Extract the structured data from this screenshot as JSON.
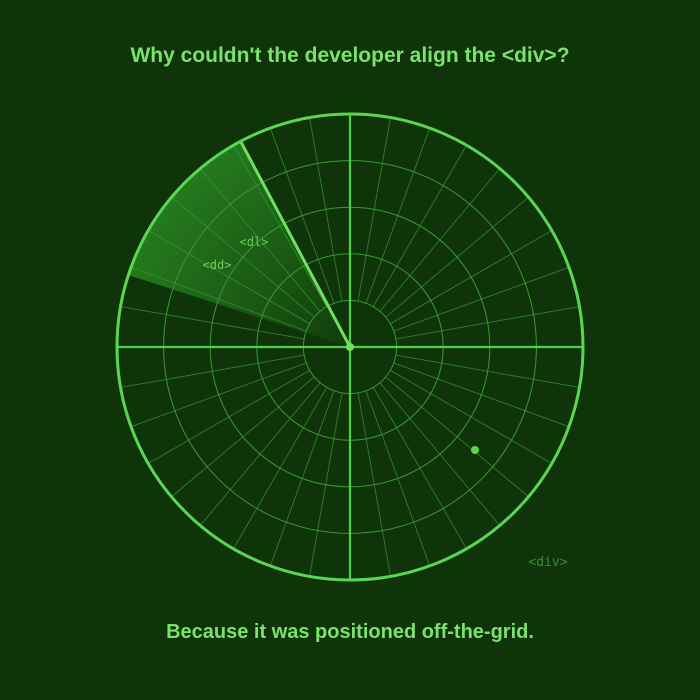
{
  "joke": {
    "question": "Why couldn't the developer align the <div>?",
    "answer": "Because it was positioned off-the-grid."
  },
  "radar": {
    "blips": [
      {
        "label": "<dl>"
      },
      {
        "label": "<dd>"
      }
    ],
    "stray_element": "<div>"
  },
  "colors": {
    "background": "#0f3409",
    "radar_line": "#4fcf47",
    "text": "#79e36a",
    "faint_text": "#3f8a38"
  }
}
